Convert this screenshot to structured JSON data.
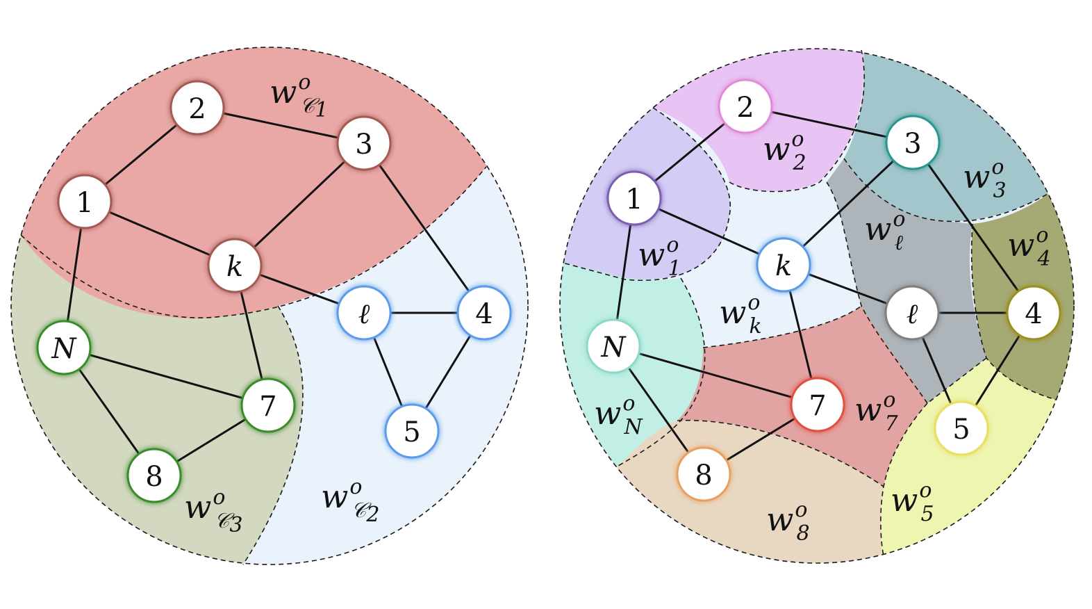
{
  "colors": {
    "node_red": "#a45a52",
    "node_blue": "#5b9be8",
    "node_green": "#3a8c2a",
    "node_purple": "#7a5fb0",
    "node_pink": "#e08ad8",
    "node_teal": "#2a9690",
    "node_mint": "#8fd8c8",
    "node_gray": "#808080",
    "node_olive": "#9a9020",
    "node_yellow": "#e8e060",
    "node_coral": "#e05040",
    "node_orange": "#e8a060",
    "region_red": "#e9a8a6",
    "region_lightblue": "#eaf3fc",
    "region_olive": "#d3d8c0",
    "region_purple": "#d3cdf5",
    "region_pink": "#e8c4f4",
    "region_teal": "#a3c6cc",
    "region_gray": "#adb4ba",
    "region_darkolive": "#a5a974",
    "region_mint": "#c1efe6",
    "region_rose": "#e2a3a3",
    "region_tan": "#e8d8c2",
    "region_yellow": "#eef5b0"
  },
  "left_diagram": {
    "nodes": [
      {
        "id": "1",
        "label": "1",
        "italic": false,
        "color": "node_red"
      },
      {
        "id": "2",
        "label": "2",
        "italic": false,
        "color": "node_red"
      },
      {
        "id": "3",
        "label": "3",
        "italic": false,
        "color": "node_red"
      },
      {
        "id": "k",
        "label": "k",
        "italic": true,
        "color": "node_red"
      },
      {
        "id": "l",
        "label": "ℓ",
        "italic": true,
        "color": "node_blue"
      },
      {
        "id": "4",
        "label": "4",
        "italic": false,
        "color": "node_blue"
      },
      {
        "id": "5",
        "label": "5",
        "italic": false,
        "color": "node_blue"
      },
      {
        "id": "N",
        "label": "N",
        "italic": true,
        "color": "node_green"
      },
      {
        "id": "7",
        "label": "7",
        "italic": false,
        "color": "node_green"
      },
      {
        "id": "8",
        "label": "8",
        "italic": false,
        "color": "node_green"
      }
    ],
    "edges": [
      [
        "1",
        "2"
      ],
      [
        "2",
        "3"
      ],
      [
        "1",
        "k"
      ],
      [
        "3",
        "k"
      ],
      [
        "3",
        "4"
      ],
      [
        "1",
        "N"
      ],
      [
        "k",
        "l"
      ],
      [
        "k",
        "7"
      ],
      [
        "l",
        "4"
      ],
      [
        "l",
        "5"
      ],
      [
        "4",
        "5"
      ],
      [
        "N",
        "7"
      ],
      [
        "N",
        "8"
      ],
      [
        "8",
        "7"
      ]
    ],
    "weights": [
      {
        "base": "w",
        "sup": "o",
        "sub": "𝒞",
        "sub_index": "1"
      },
      {
        "base": "w",
        "sup": "o",
        "sub": "𝒞",
        "sub_index": "2"
      },
      {
        "base": "w",
        "sup": "o",
        "sub": "𝒞",
        "sub_index": "3"
      }
    ]
  },
  "right_diagram": {
    "nodes": [
      {
        "id": "1",
        "label": "1",
        "italic": false,
        "color": "node_purple"
      },
      {
        "id": "2",
        "label": "2",
        "italic": false,
        "color": "node_pink"
      },
      {
        "id": "3",
        "label": "3",
        "italic": false,
        "color": "node_teal"
      },
      {
        "id": "k",
        "label": "k",
        "italic": true,
        "color": "node_blue"
      },
      {
        "id": "l",
        "label": "ℓ",
        "italic": true,
        "color": "node_gray"
      },
      {
        "id": "4",
        "label": "4",
        "italic": false,
        "color": "node_olive"
      },
      {
        "id": "5",
        "label": "5",
        "italic": false,
        "color": "node_yellow"
      },
      {
        "id": "N",
        "label": "N",
        "italic": true,
        "color": "node_mint"
      },
      {
        "id": "7",
        "label": "7",
        "italic": false,
        "color": "node_coral"
      },
      {
        "id": "8",
        "label": "8",
        "italic": false,
        "color": "node_orange"
      }
    ],
    "edges": [
      [
        "1",
        "2"
      ],
      [
        "2",
        "3"
      ],
      [
        "1",
        "k"
      ],
      [
        "3",
        "k"
      ],
      [
        "3",
        "4"
      ],
      [
        "1",
        "N"
      ],
      [
        "k",
        "l"
      ],
      [
        "k",
        "7"
      ],
      [
        "l",
        "4"
      ],
      [
        "l",
        "5"
      ],
      [
        "4",
        "5"
      ],
      [
        "N",
        "7"
      ],
      [
        "N",
        "8"
      ],
      [
        "8",
        "7"
      ]
    ],
    "weights": [
      {
        "base": "w",
        "sup": "o",
        "sub": "2"
      },
      {
        "base": "w",
        "sup": "o",
        "sub": "3"
      },
      {
        "base": "w",
        "sup": "o",
        "sub": "1"
      },
      {
        "base": "w",
        "sup": "o",
        "sub": "ℓ"
      },
      {
        "base": "w",
        "sup": "o",
        "sub": "4"
      },
      {
        "base": "w",
        "sup": "o",
        "sub": "k"
      },
      {
        "base": "w",
        "sup": "o",
        "sub": "N"
      },
      {
        "base": "w",
        "sup": "o",
        "sub": "7"
      },
      {
        "base": "w",
        "sup": "o",
        "sub": "5"
      },
      {
        "base": "w",
        "sup": "o",
        "sub": "8"
      }
    ]
  }
}
